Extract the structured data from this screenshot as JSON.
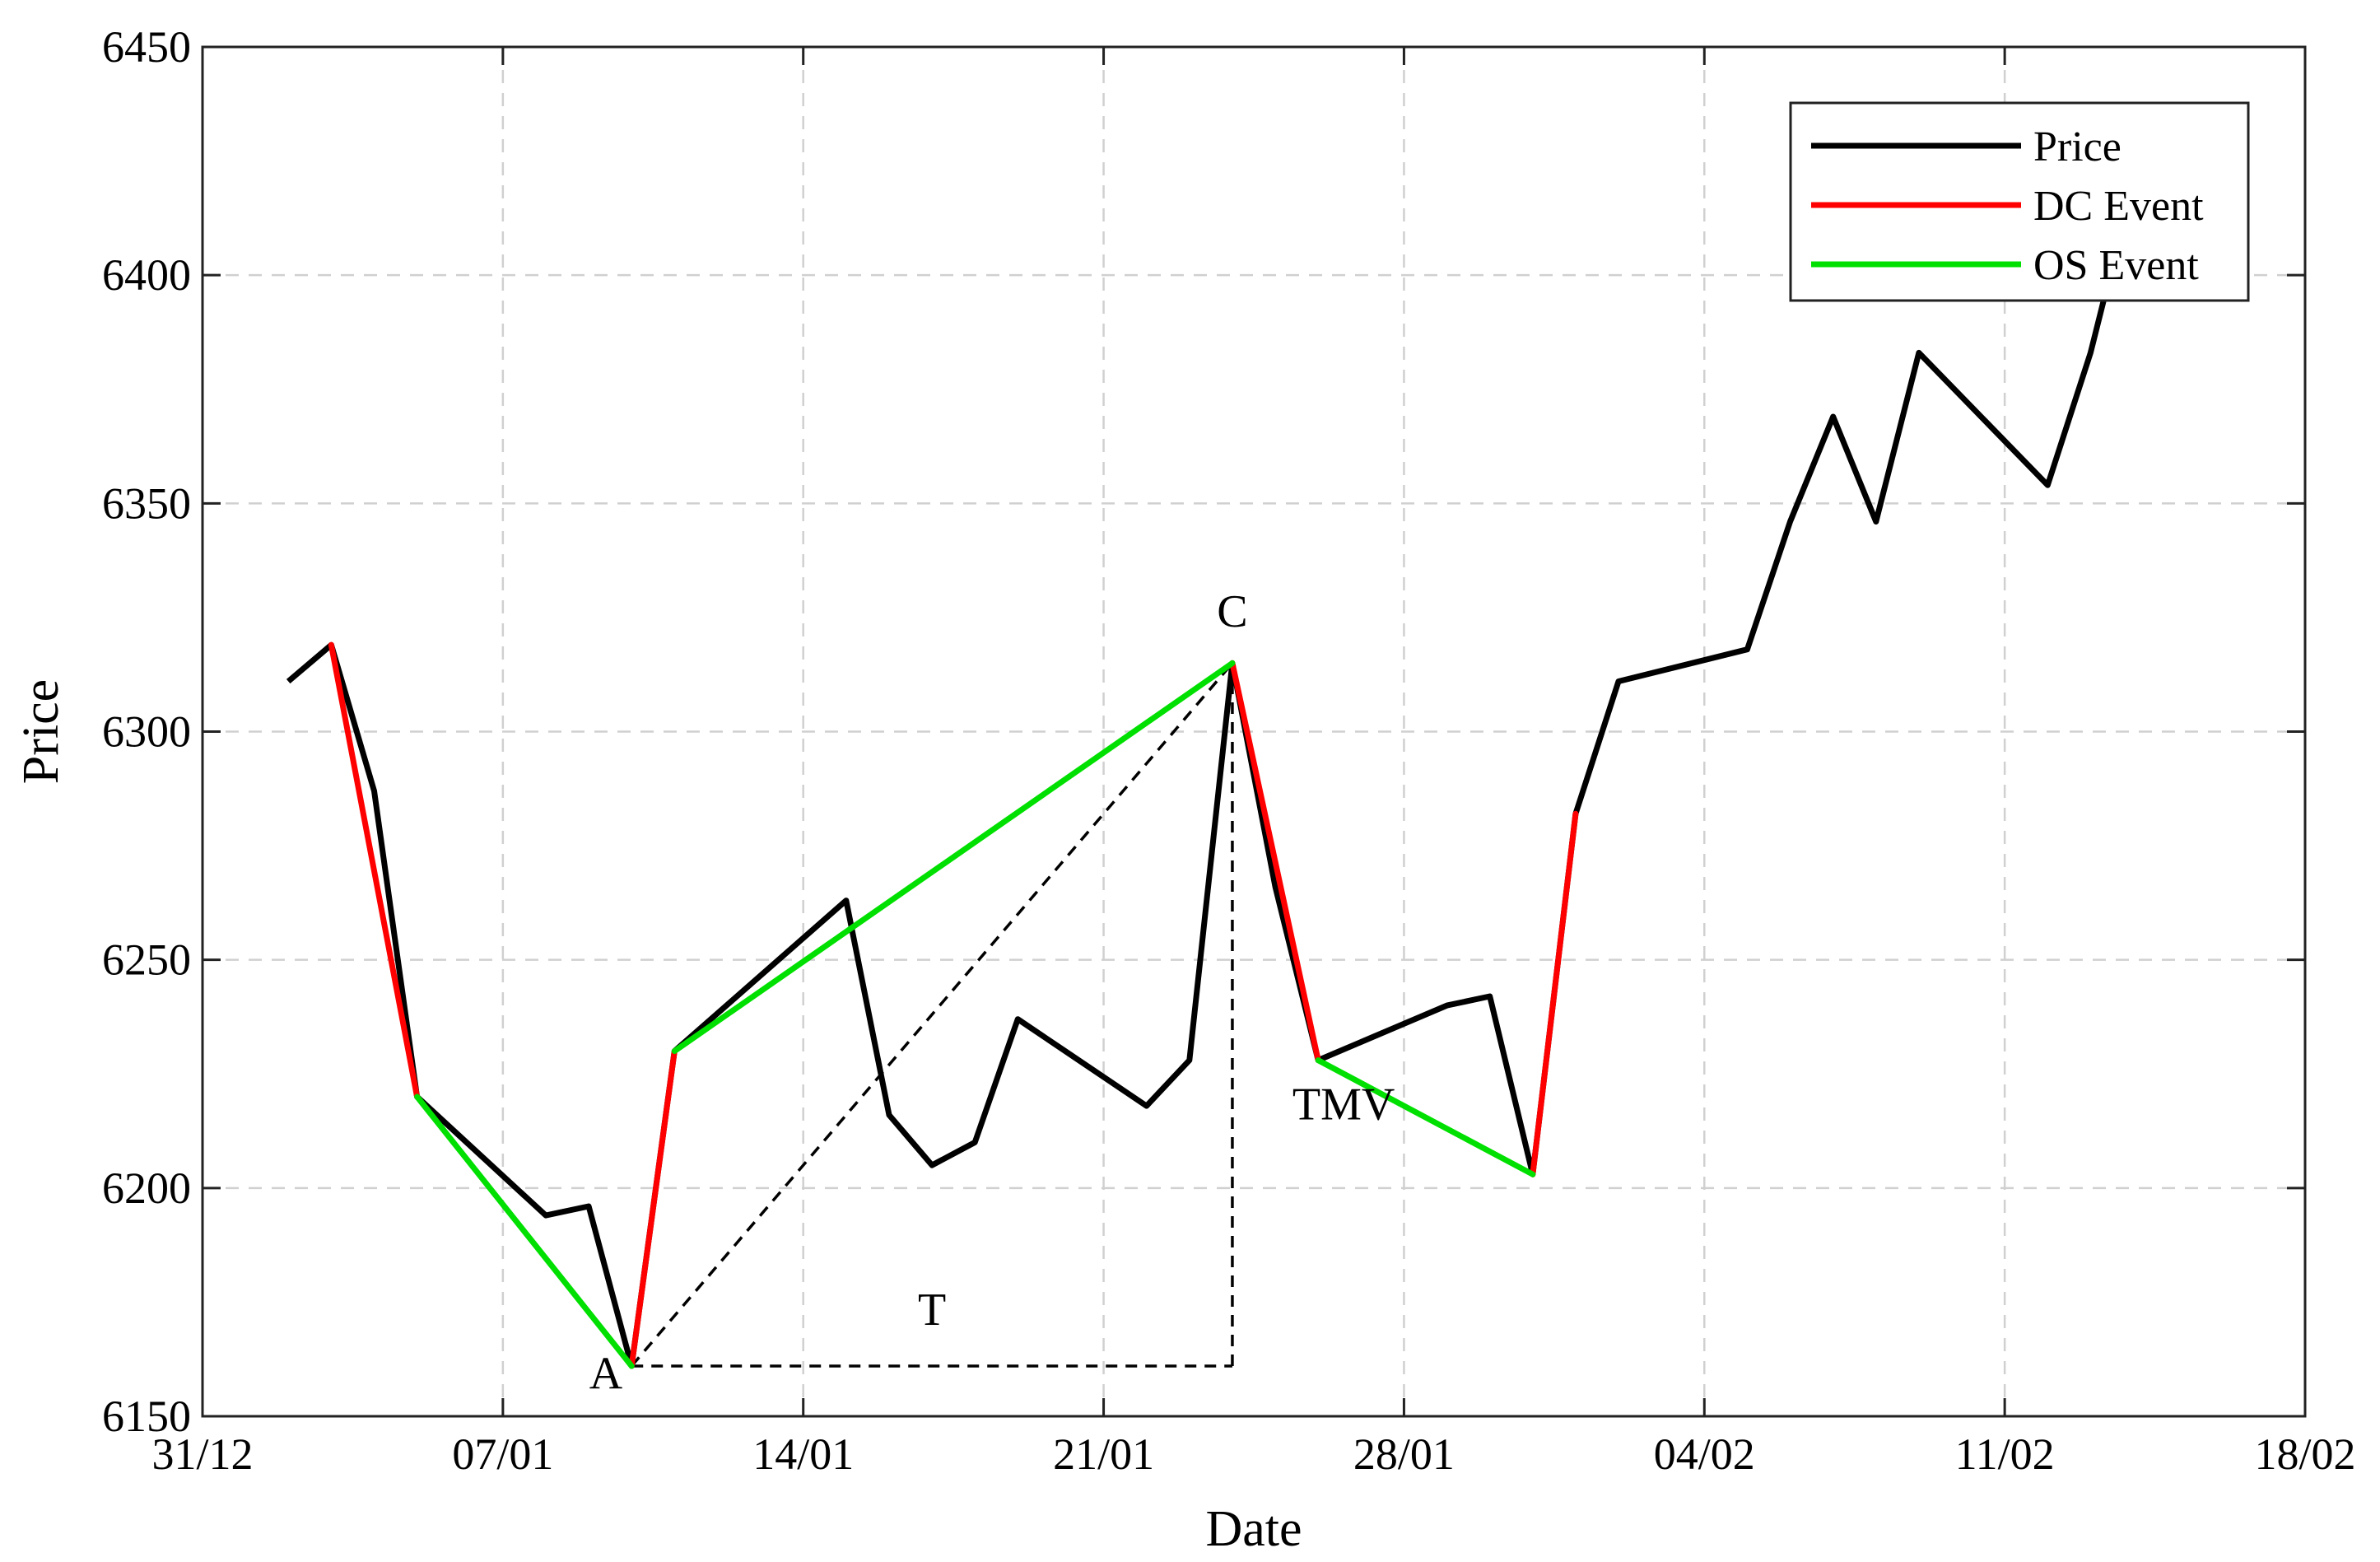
{
  "chart_data": {
    "type": "line",
    "title": "",
    "xlabel": "Date",
    "ylabel": "Price",
    "x_range_days": [
      0,
      49
    ],
    "ylim": [
      6150,
      6450
    ],
    "x_ticks": [
      {
        "day": 0,
        "label": "31/12"
      },
      {
        "day": 7,
        "label": "07/01"
      },
      {
        "day": 14,
        "label": "14/01"
      },
      {
        "day": 21,
        "label": "21/01"
      },
      {
        "day": 28,
        "label": "28/01"
      },
      {
        "day": 35,
        "label": "04/02"
      },
      {
        "day": 42,
        "label": "11/02"
      },
      {
        "day": 49,
        "label": "18/02"
      }
    ],
    "y_ticks": [
      6150,
      6200,
      6250,
      6300,
      6350,
      6400,
      6450
    ],
    "grid": true,
    "legend_position": "top-right",
    "series": [
      {
        "name": "Price",
        "color": "#000000",
        "points": [
          {
            "x": 2,
            "y": 6311
          },
          {
            "x": 3,
            "y": 6319
          },
          {
            "x": 4,
            "y": 6287
          },
          {
            "x": 5,
            "y": 6220
          },
          {
            "x": 8,
            "y": 6194
          },
          {
            "x": 9,
            "y": 6196
          },
          {
            "x": 10,
            "y": 6161
          },
          {
            "x": 11,
            "y": 6230
          },
          {
            "x": 15,
            "y": 6263
          },
          {
            "x": 16,
            "y": 6216
          },
          {
            "x": 17,
            "y": 6205
          },
          {
            "x": 18,
            "y": 6210
          },
          {
            "x": 19,
            "y": 6237
          },
          {
            "x": 22,
            "y": 6218
          },
          {
            "x": 23,
            "y": 6228
          },
          {
            "x": 24,
            "y": 6315
          },
          {
            "x": 25,
            "y": 6266
          },
          {
            "x": 26,
            "y": 6228
          },
          {
            "x": 29,
            "y": 6240
          },
          {
            "x": 30,
            "y": 6242
          },
          {
            "x": 31,
            "y": 6203
          },
          {
            "x": 32,
            "y": 6282
          },
          {
            "x": 33,
            "y": 6311
          },
          {
            "x": 36,
            "y": 6318
          },
          {
            "x": 37,
            "y": 6346
          },
          {
            "x": 38,
            "y": 6369
          },
          {
            "x": 39,
            "y": 6346
          },
          {
            "x": 40,
            "y": 6383
          },
          {
            "x": 43,
            "y": 6354
          },
          {
            "x": 44,
            "y": 6383
          },
          {
            "x": 44.8,
            "y": 6413
          }
        ]
      },
      {
        "name": "DC Event",
        "color": "#ff0000",
        "segments": [
          [
            {
              "x": 3,
              "y": 6319
            },
            {
              "x": 5,
              "y": 6220
            }
          ],
          [
            {
              "x": 10,
              "y": 6161
            },
            {
              "x": 11,
              "y": 6230
            }
          ],
          [
            {
              "x": 24,
              "y": 6315
            },
            {
              "x": 26,
              "y": 6228
            }
          ],
          [
            {
              "x": 31,
              "y": 6203
            },
            {
              "x": 32,
              "y": 6282
            }
          ]
        ]
      },
      {
        "name": "OS Event",
        "color": "#00e000",
        "segments": [
          [
            {
              "x": 5,
              "y": 6220
            },
            {
              "x": 10,
              "y": 6161
            }
          ],
          [
            {
              "x": 11,
              "y": 6230
            },
            {
              "x": 24,
              "y": 6315
            }
          ],
          [
            {
              "x": 26,
              "y": 6228
            },
            {
              "x": 31,
              "y": 6203
            }
          ]
        ]
      }
    ],
    "guides": [
      [
        {
          "x": 10,
          "y": 6161
        },
        {
          "x": 24,
          "y": 6315
        }
      ],
      [
        {
          "x": 10,
          "y": 6161
        },
        {
          "x": 24,
          "y": 6161
        }
      ],
      [
        {
          "x": 24,
          "y": 6161
        },
        {
          "x": 24,
          "y": 6315
        }
      ]
    ],
    "annotations": [
      {
        "text": "A",
        "x": 9.4,
        "y": 6156
      },
      {
        "text": "C",
        "x": 24,
        "y": 6323
      },
      {
        "text": "T",
        "x": 17,
        "y": 6170
      },
      {
        "text": "TMV",
        "x": 25.4,
        "y": 6215
      }
    ]
  }
}
